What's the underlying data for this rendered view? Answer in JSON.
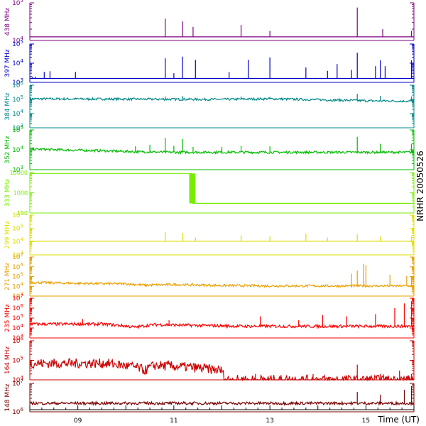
{
  "chart_data": {
    "type": "line",
    "side_label": "NRHR 20050526",
    "xaxis": {
      "label": "Time (UT)",
      "range": [
        8.0,
        16.0
      ],
      "ticks": [
        {
          "value": 9.0,
          "label": "09"
        },
        {
          "value": 11.0,
          "label": "11"
        },
        {
          "value": 13.0,
          "label": "13"
        },
        {
          "value": 15.0,
          "label": "15"
        }
      ]
    },
    "panels": [
      {
        "id": "p438",
        "freq": "438 MHz",
        "color": "#7f007f",
        "log": true,
        "ylim": [
          10000,
          100000
        ],
        "yticks": [
          {
            "value": 10000,
            "label": "10^4"
          },
          {
            "value": 100000,
            "label": "10^5"
          }
        ],
        "base": [
          [
            8.0,
            12500
          ],
          [
            16.0,
            12500
          ]
        ],
        "noise": 0.0,
        "spikes": [
          [
            10.82,
            38000
          ],
          [
            11.18,
            32000
          ],
          [
            11.4,
            23000
          ],
          [
            12.4,
            26000
          ],
          [
            13.0,
            18000
          ],
          [
            14.82,
            75000
          ],
          [
            15.35,
            20000
          ],
          [
            15.95,
            18000
          ]
        ]
      },
      {
        "id": "p397",
        "freq": "397 MHz",
        "color": "#0000cc",
        "log": true,
        "ylim": [
          1000,
          100000
        ],
        "yticks": [
          {
            "value": 1000,
            "label": "10^3"
          },
          {
            "value": 10000,
            "label": "10^4"
          },
          {
            "value": 100000,
            "label": "10^5"
          }
        ],
        "base": [
          [
            8.0,
            1600
          ],
          [
            16.0,
            1600
          ]
        ],
        "noise": 0.0,
        "spikes": [
          [
            8.06,
            2000
          ],
          [
            8.12,
            2000
          ],
          [
            8.3,
            3500
          ],
          [
            8.42,
            3800
          ],
          [
            8.95,
            3500
          ],
          [
            10.82,
            18000
          ],
          [
            11.0,
            3000
          ],
          [
            11.18,
            22000
          ],
          [
            11.45,
            15000
          ],
          [
            12.15,
            3500
          ],
          [
            12.55,
            15000
          ],
          [
            13.0,
            20000
          ],
          [
            13.75,
            6000
          ],
          [
            14.2,
            4000
          ],
          [
            14.4,
            9000
          ],
          [
            14.7,
            4500
          ],
          [
            14.82,
            35000
          ],
          [
            15.2,
            7000
          ],
          [
            15.3,
            14000
          ],
          [
            15.4,
            7000
          ],
          [
            15.95,
            14000
          ]
        ]
      },
      {
        "id": "p384",
        "freq": "384 MHz",
        "color": "#008888",
        "log": true,
        "ylim": [
          1000,
          1000000
        ],
        "yticks": [
          {
            "value": 1000,
            "label": "10^3"
          },
          {
            "value": 10000,
            "label": "10^4"
          },
          {
            "value": 100000,
            "label": "10^5"
          },
          {
            "value": 1000000,
            "label": "10^6"
          }
        ],
        "base": [
          [
            8.0,
            110000
          ],
          [
            10.0,
            105000
          ],
          [
            12.0,
            100000
          ],
          [
            13.0,
            110000
          ],
          [
            14.0,
            95000
          ],
          [
            15.0,
            80000
          ],
          [
            16.0,
            75000
          ]
        ],
        "noise": 0.08,
        "spikes": [
          [
            10.82,
            160000
          ],
          [
            11.18,
            170000
          ],
          [
            12.4,
            160000
          ],
          [
            13.0,
            150000
          ],
          [
            14.82,
            250000
          ],
          [
            15.3,
            180000
          ],
          [
            15.95,
            160000
          ]
        ]
      },
      {
        "id": "p352",
        "freq": "352 MHz",
        "color": "#00bb00",
        "log": true,
        "ylim": [
          1000,
          100000
        ],
        "yticks": [
          {
            "value": 1000,
            "label": "10^3"
          },
          {
            "value": 10000,
            "label": "10^4"
          },
          {
            "value": 100000,
            "label": "10^5"
          }
        ],
        "base": [
          [
            8.0,
            11000
          ],
          [
            8.6,
            10000
          ],
          [
            9.5,
            9000
          ],
          [
            10.2,
            8000
          ],
          [
            11.0,
            7500
          ],
          [
            12.0,
            7500
          ],
          [
            14.0,
            7500
          ],
          [
            16.0,
            7500
          ]
        ],
        "noise": 0.06,
        "spikes": [
          [
            10.2,
            15000
          ],
          [
            10.5,
            18000
          ],
          [
            10.82,
            40000
          ],
          [
            11.0,
            16000
          ],
          [
            11.18,
            35000
          ],
          [
            11.4,
            14000
          ],
          [
            12.0,
            14000
          ],
          [
            12.4,
            16000
          ],
          [
            13.0,
            15000
          ],
          [
            14.82,
            45000
          ],
          [
            15.3,
            20000
          ],
          [
            15.95,
            20000
          ]
        ]
      },
      {
        "id": "p333",
        "freq": "333 MHz",
        "color": "#77ee00",
        "log": true,
        "ylim": [
          100,
          10000
        ],
        "yticks": [
          {
            "value": 100,
            "label": "100"
          },
          {
            "value": 1000,
            "label": "1000"
          },
          {
            "value": 10000,
            "label": "10000"
          }
        ],
        "base": [
          [
            8.0,
            9000
          ],
          [
            11.38,
            9000
          ],
          [
            11.39,
            300
          ],
          [
            16.0,
            300
          ]
        ],
        "noise": 0.0,
        "block": {
          "x0": 11.32,
          "x1": 11.45,
          "y0": 300,
          "y1": 9000
        },
        "spikes": []
      },
      {
        "id": "p299",
        "freq": "299 MHz",
        "color": "#dddd00",
        "log": true,
        "ylim": [
          1000,
          1000000
        ],
        "yticks": [
          {
            "value": 1000,
            "label": "10^3"
          },
          {
            "value": 10000,
            "label": "10^4"
          },
          {
            "value": 100000,
            "label": "10^5"
          },
          {
            "value": 1000000,
            "label": "10^6"
          }
        ],
        "base": [
          [
            8.0,
            11000
          ],
          [
            16.0,
            11000
          ]
        ],
        "noise": 0.0,
        "spikes": [
          [
            10.82,
            50000
          ],
          [
            11.18,
            45000
          ],
          [
            11.45,
            20000
          ],
          [
            12.4,
            30000
          ],
          [
            13.0,
            25000
          ],
          [
            13.75,
            40000
          ],
          [
            14.2,
            20000
          ],
          [
            14.82,
            35000
          ],
          [
            15.3,
            25000
          ],
          [
            15.95,
            25000
          ]
        ]
      },
      {
        "id": "p271",
        "freq": "271 MHz",
        "color": "#e8a000",
        "log": true,
        "ylim": [
          1000,
          10000000
        ],
        "yticks": [
          {
            "value": 1000,
            "label": "10^3"
          },
          {
            "value": 10000,
            "label": "10^4"
          },
          {
            "value": 100000,
            "label": "10^5"
          },
          {
            "value": 1000000,
            "label": "10^6"
          },
          {
            "value": 10000000,
            "label": "10^7"
          }
        ],
        "base": [
          [
            8.0,
            25000
          ],
          [
            9.0,
            20000
          ],
          [
            10.0,
            18000
          ],
          [
            10.4,
            13000
          ],
          [
            11.0,
            15000
          ],
          [
            12.0,
            12000
          ],
          [
            13.0,
            11000
          ],
          [
            14.0,
            11000
          ],
          [
            16.0,
            11000
          ]
        ],
        "noise": 0.12,
        "spikes": [
          [
            14.7,
            200000
          ],
          [
            14.82,
            400000
          ],
          [
            14.95,
            2000000
          ],
          [
            15.0,
            1500000
          ],
          [
            15.5,
            150000
          ],
          [
            15.85,
            120000
          ],
          [
            15.95,
            100000
          ]
        ]
      },
      {
        "id": "p235",
        "freq": "235 MHz",
        "color": "#ff0000",
        "log": true,
        "ylim": [
          1000,
          10000000
        ],
        "yticks": [
          {
            "value": 1000,
            "label": "10^3"
          },
          {
            "value": 10000,
            "label": "10^4"
          },
          {
            "value": 100000,
            "label": "10^5"
          },
          {
            "value": 1000000,
            "label": "10^6"
          },
          {
            "value": 10000000,
            "label": "10^7"
          }
        ],
        "base": [
          [
            8.0,
            25000
          ],
          [
            9.5,
            25000
          ],
          [
            10.2,
            12000
          ],
          [
            10.6,
            22000
          ],
          [
            11.5,
            18000
          ],
          [
            12.5,
            15000
          ],
          [
            14.0,
            15000
          ],
          [
            16.0,
            15000
          ]
        ],
        "noise": 0.15,
        "spikes": [
          [
            9.1,
            80000
          ],
          [
            10.9,
            60000
          ],
          [
            12.8,
            150000
          ],
          [
            13.6,
            60000
          ],
          [
            14.1,
            200000
          ],
          [
            14.6,
            150000
          ],
          [
            15.2,
            250000
          ],
          [
            15.6,
            1000000
          ],
          [
            15.8,
            3000000
          ],
          [
            15.95,
            5000000
          ]
        ]
      },
      {
        "id": "p164",
        "freq": "164 MHz",
        "color": "#cc0000",
        "log": true,
        "ylim": [
          10000,
          1000000
        ],
        "yticks": [
          {
            "value": 10000,
            "label": "10^4"
          },
          {
            "value": 100000,
            "label": "10^5"
          },
          {
            "value": 1000000,
            "label": "10^6"
          }
        ],
        "base": [
          [
            8.0,
            70000
          ],
          [
            9.6,
            70000
          ],
          [
            10.2,
            45000
          ],
          [
            10.4,
            30000
          ],
          [
            10.6,
            55000
          ],
          [
            11.3,
            45000
          ],
          [
            12.0,
            30000
          ],
          [
            12.05,
            10000
          ],
          [
            16.0,
            10000
          ]
        ],
        "noise": 0.25,
        "spikes": [
          [
            12.7,
            20000
          ],
          [
            13.9,
            20000
          ],
          [
            14.82,
            60000
          ],
          [
            15.3,
            20000
          ],
          [
            15.7,
            30000
          ],
          [
            15.95,
            20000
          ]
        ]
      },
      {
        "id": "p148",
        "freq": "148 MHz",
        "color": "#7a0000",
        "log": true,
        "ylim": [
          1000000,
          10000000
        ],
        "yticks": [
          {
            "value": 1000000,
            "label": "10^6"
          },
          {
            "value": 10000000,
            "label": "10^7"
          }
        ],
        "base": [
          [
            8.0,
            2000000
          ],
          [
            16.0,
            2000000
          ]
        ],
        "noise": 0.05,
        "spikes": [
          [
            14.82,
            5000000
          ],
          [
            15.3,
            4000000
          ],
          [
            15.8,
            6000000
          ],
          [
            15.95,
            8000000
          ]
        ]
      }
    ]
  }
}
